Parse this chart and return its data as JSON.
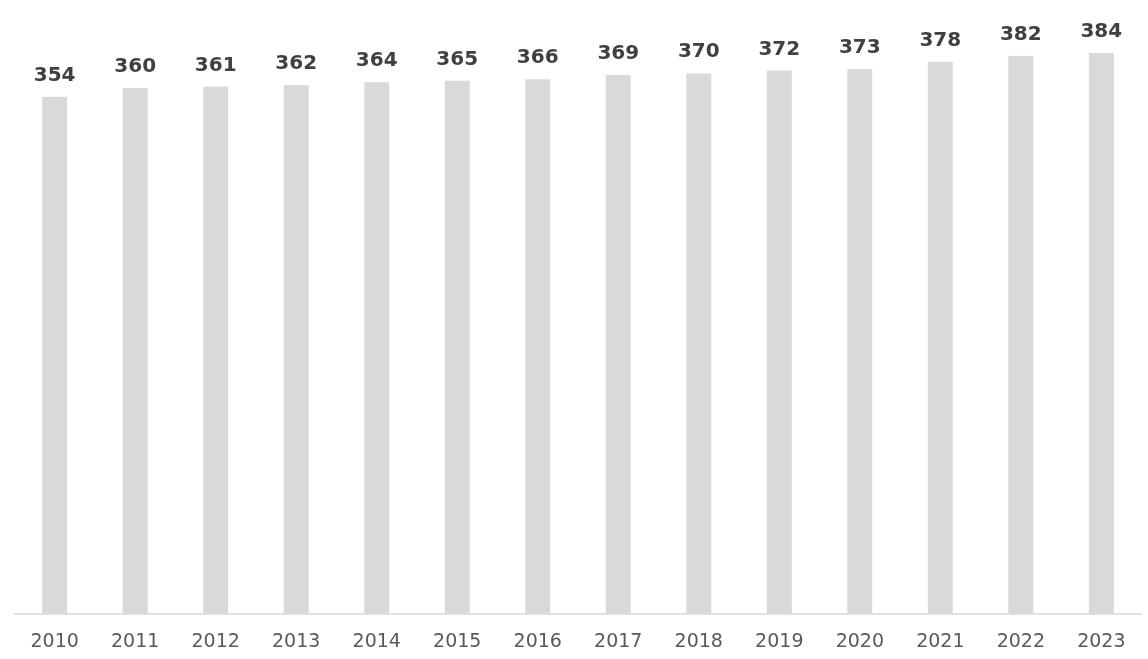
{
  "chart_data": {
    "type": "bar",
    "categories": [
      "2010",
      "2011",
      "2012",
      "2013",
      "2014",
      "2015",
      "2016",
      "2017",
      "2018",
      "2019",
      "2020",
      "2021",
      "2022",
      "2023"
    ],
    "values": [
      354,
      360,
      361,
      362,
      364,
      365,
      366,
      369,
      370,
      372,
      373,
      378,
      382,
      384
    ],
    "color": "#d9d9d9",
    "data_labels": true,
    "tick_labels": "x"
  }
}
